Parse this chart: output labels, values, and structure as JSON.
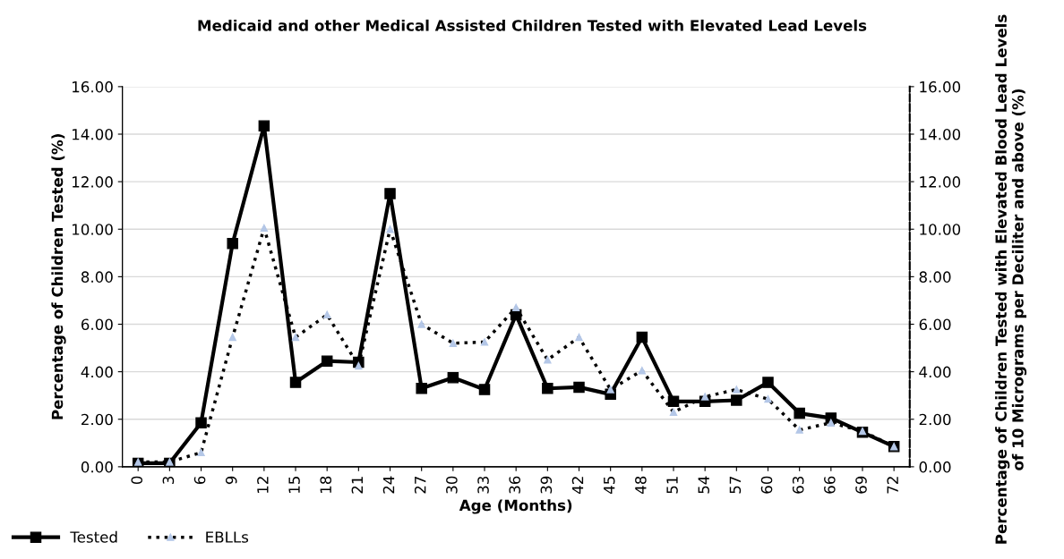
{
  "chart_data": {
    "type": "line",
    "title": "Medicaid and other Medical Assisted Children Tested with Elevated Lead Levels",
    "xlabel": "Age (Months)",
    "ylabel": "Percentage of Children Tested (%)",
    "y2label": "Percentage of Children Tested with Elevated Blood Lead Levels of 10 Micrograms per Deciliter and above (%)",
    "categories": [
      "0",
      "3",
      "6",
      "9",
      "12",
      "15",
      "18",
      "21",
      "24",
      "27",
      "30",
      "33",
      "36",
      "39",
      "42",
      "45",
      "48",
      "51",
      "54",
      "57",
      "60",
      "63",
      "66",
      "69",
      "72"
    ],
    "series": [
      {
        "name": "Tested",
        "color": "#000000",
        "marker": "square",
        "line_style": "solid",
        "values": [
          0.15,
          0.15,
          1.85,
          9.4,
          14.35,
          3.55,
          4.45,
          4.4,
          11.5,
          3.3,
          3.75,
          3.25,
          6.4,
          3.3,
          3.35,
          3.05,
          5.45,
          2.75,
          2.75,
          2.8,
          3.55,
          2.25,
          2.05,
          1.45,
          0.85
        ]
      },
      {
        "name": "EBLLs",
        "color": "#000000",
        "marker": "triangle",
        "line_style": "dotted",
        "axis": "y2",
        "values": [
          0.2,
          0.2,
          0.6,
          5.45,
          10.05,
          5.45,
          6.4,
          4.25,
          10.0,
          6.0,
          5.2,
          5.25,
          6.7,
          4.5,
          5.45,
          3.25,
          4.05,
          2.3,
          2.95,
          3.25,
          2.85,
          1.55,
          1.85,
          1.5,
          0.85
        ]
      }
    ],
    "ylim": [
      0,
      16
    ],
    "yticks": [
      {
        "value": 0,
        "label": "0.00"
      },
      {
        "value": 2,
        "label": "2.00"
      },
      {
        "value": 4,
        "label": "4.00"
      },
      {
        "value": 6,
        "label": "6.00"
      },
      {
        "value": 8,
        "label": "8.00"
      },
      {
        "value": 10,
        "label": "10.00"
      },
      {
        "value": 12,
        "label": "12.00"
      },
      {
        "value": 14,
        "label": "14.00"
      },
      {
        "value": 16,
        "label": "16.00"
      }
    ],
    "y2lim": [
      0,
      16
    ],
    "y2ticks": [
      {
        "value": 0,
        "label": "0.00"
      },
      {
        "value": 2,
        "label": "2.00"
      },
      {
        "value": 4,
        "label": "4.00"
      },
      {
        "value": 6,
        "label": "6.00"
      },
      {
        "value": 8,
        "label": "8.00"
      },
      {
        "value": 10,
        "label": "10.00"
      },
      {
        "value": 12,
        "label": "12.00"
      },
      {
        "value": 14,
        "label": "14.00"
      },
      {
        "value": 16,
        "label": "16.00"
      }
    ],
    "grid": "y",
    "legend": "bottom left"
  }
}
